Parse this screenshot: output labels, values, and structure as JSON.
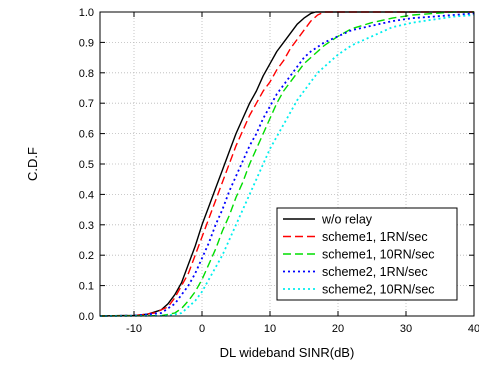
{
  "chart_data": {
    "type": "line",
    "title": "",
    "xlabel": "DL wideband SINR(dB)",
    "ylabel": "C.D.F",
    "xlim": [
      -15,
      40
    ],
    "ylim": [
      0,
      1.0
    ],
    "x_ticks": [
      -10,
      0,
      10,
      20,
      30,
      40
    ],
    "x_tick_labels": [
      "-10",
      "0",
      "10",
      "20",
      "30",
      "40"
    ],
    "y_ticks": [
      0,
      0.1,
      0.2,
      0.3,
      0.4,
      0.5,
      0.6,
      0.7,
      0.8,
      0.9,
      1.0
    ],
    "y_tick_labels": [
      "0.0",
      "0.1",
      "0.2",
      "0.3",
      "0.4",
      "0.5",
      "0.6",
      "0.7",
      "0.8",
      "0.9",
      "1.0"
    ],
    "grid": true,
    "legend_position": "bottom-right",
    "series": [
      {
        "name": "w/o relay",
        "color": "#000000",
        "dash": "solid",
        "x": [
          -15,
          -10,
          -8,
          -6,
          -5,
          -4,
          -3,
          -2,
          -1,
          0,
          1,
          2,
          3,
          4,
          5,
          6,
          7,
          8,
          9,
          10,
          11,
          12,
          13,
          14,
          15,
          16,
          16.7,
          20,
          25,
          30,
          35,
          40
        ],
        "y": [
          0,
          0.002,
          0.006,
          0.02,
          0.04,
          0.07,
          0.11,
          0.17,
          0.23,
          0.3,
          0.36,
          0.42,
          0.48,
          0.54,
          0.6,
          0.65,
          0.7,
          0.74,
          0.79,
          0.83,
          0.87,
          0.9,
          0.93,
          0.96,
          0.98,
          0.995,
          1.0,
          1.0,
          1.0,
          1.0,
          1.0,
          1.0
        ]
      },
      {
        "name": "scheme1, 1RN/sec",
        "color": "#ff0000",
        "dash": "long-dash",
        "x": [
          -15,
          -10,
          -7,
          -5,
          -4,
          -3,
          -2,
          -1,
          0,
          1,
          2,
          3,
          4,
          5,
          6,
          7,
          8,
          9,
          10,
          11,
          12,
          13,
          14,
          15,
          16,
          17,
          18,
          20,
          25,
          30,
          35,
          40
        ],
        "y": [
          0,
          0.001,
          0.01,
          0.03,
          0.06,
          0.1,
          0.14,
          0.2,
          0.26,
          0.32,
          0.38,
          0.44,
          0.5,
          0.56,
          0.61,
          0.66,
          0.7,
          0.74,
          0.77,
          0.81,
          0.84,
          0.88,
          0.91,
          0.94,
          0.97,
          0.99,
          1.0,
          1.0,
          1.0,
          1.0,
          1.0,
          1.0
        ]
      },
      {
        "name": "scheme1, 10RN/sec",
        "color": "#00dd00",
        "dash": "long-dash",
        "x": [
          -15,
          -6,
          -4,
          -3,
          -2,
          -1,
          0,
          1,
          2,
          3,
          4,
          5,
          6,
          7,
          8,
          9,
          10,
          11,
          12,
          13,
          14,
          15,
          16,
          17,
          18,
          20,
          22,
          25,
          28,
          31,
          34,
          37,
          40
        ],
        "y": [
          0,
          0.001,
          0.01,
          0.025,
          0.05,
          0.08,
          0.12,
          0.17,
          0.22,
          0.28,
          0.33,
          0.39,
          0.44,
          0.5,
          0.55,
          0.6,
          0.65,
          0.7,
          0.74,
          0.77,
          0.8,
          0.83,
          0.85,
          0.87,
          0.89,
          0.92,
          0.945,
          0.965,
          0.98,
          0.99,
          0.995,
          1.0,
          1.0
        ]
      },
      {
        "name": "scheme2, 1RN/sec",
        "color": "#0000ff",
        "dash": "dot",
        "x": [
          -15,
          -10,
          -6,
          -4,
          -3,
          -2,
          -1,
          0,
          1,
          2,
          3,
          4,
          5,
          6,
          7,
          8,
          9,
          10,
          11,
          12,
          13,
          14,
          15,
          16,
          18,
          20,
          22,
          25,
          28,
          31,
          34,
          37,
          40
        ],
        "y": [
          0,
          0.001,
          0.01,
          0.04,
          0.07,
          0.1,
          0.14,
          0.19,
          0.24,
          0.3,
          0.35,
          0.41,
          0.46,
          0.51,
          0.56,
          0.6,
          0.65,
          0.69,
          0.73,
          0.76,
          0.79,
          0.82,
          0.85,
          0.87,
          0.9,
          0.92,
          0.94,
          0.955,
          0.97,
          0.98,
          0.985,
          0.99,
          0.995
        ]
      },
      {
        "name": "scheme2, 10RN/sec",
        "color": "#00eeee",
        "dash": "dot",
        "x": [
          -15,
          -5,
          -3,
          -2,
          -1,
          0,
          1,
          2,
          3,
          4,
          5,
          6,
          7,
          8,
          9,
          10,
          11,
          12,
          13,
          14,
          15,
          16,
          17,
          18,
          20,
          22,
          25,
          28,
          31,
          34,
          37,
          40
        ],
        "y": [
          0,
          0.001,
          0.01,
          0.03,
          0.05,
          0.08,
          0.12,
          0.16,
          0.2,
          0.25,
          0.3,
          0.35,
          0.4,
          0.45,
          0.5,
          0.55,
          0.59,
          0.63,
          0.67,
          0.71,
          0.74,
          0.77,
          0.8,
          0.82,
          0.86,
          0.89,
          0.92,
          0.95,
          0.965,
          0.975,
          0.985,
          0.99
        ]
      }
    ]
  }
}
